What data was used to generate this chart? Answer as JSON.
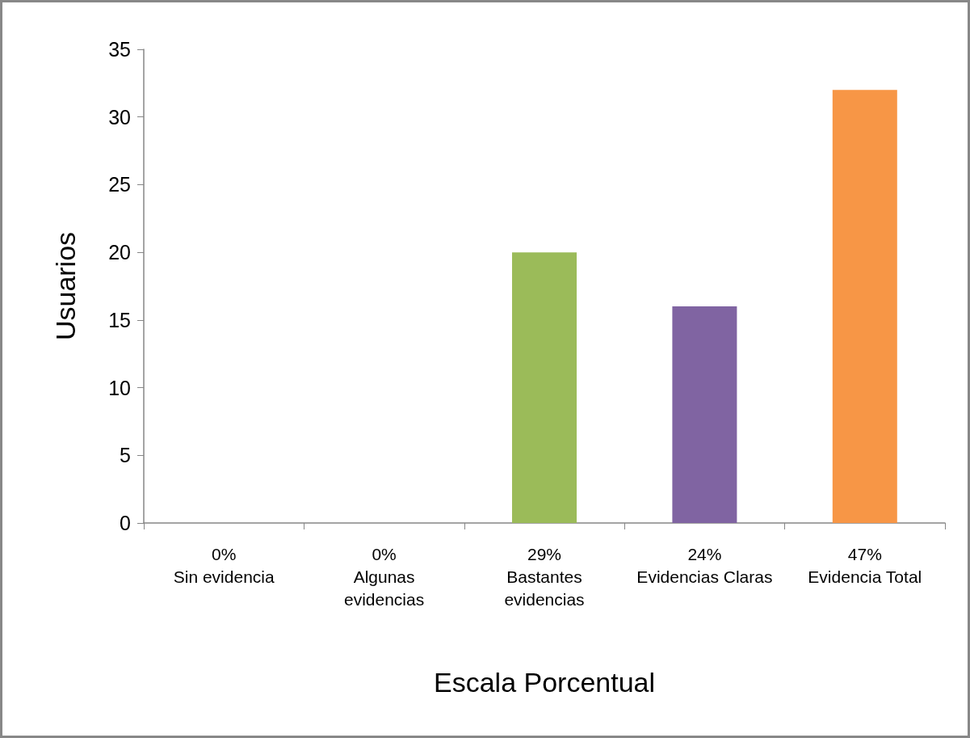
{
  "chart_data": {
    "type": "bar",
    "xlabel": "Escala Porcentual",
    "ylabel": "Usuarios",
    "categories": [
      "0%\nSin evidencia",
      "0%\nAlgunas\nevidencias",
      "29%\nBastantes\nevidencias",
      "24%\nEvidencias Claras",
      "47%\nEvidencia Total"
    ],
    "values": [
      0,
      0,
      20,
      16,
      32
    ],
    "colors": [
      "#4f81bd",
      "#c0504d",
      "#9bbb59",
      "#8064a2",
      "#f79646"
    ],
    "ylim": [
      0,
      35
    ],
    "yticks": [
      0,
      5,
      10,
      15,
      20,
      25,
      30,
      35
    ],
    "grid": false
  }
}
